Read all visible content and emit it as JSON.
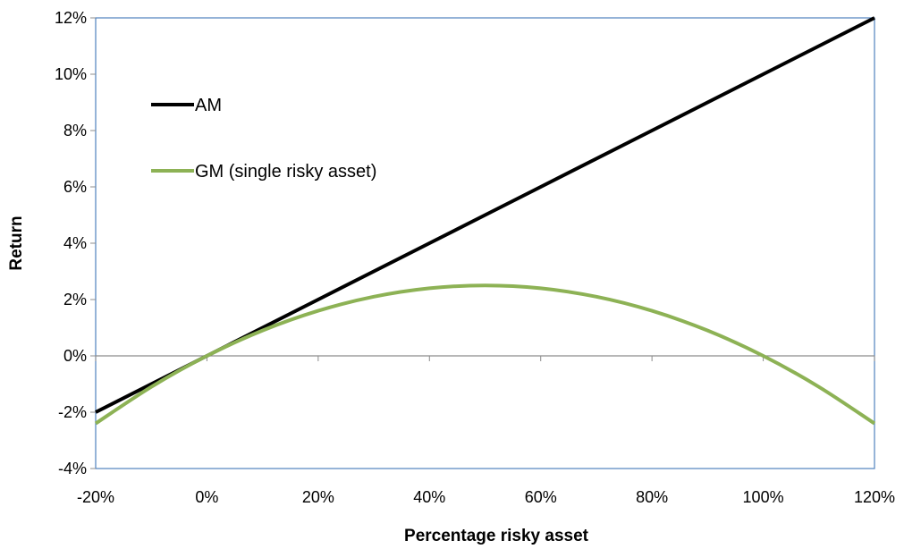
{
  "chart_data": {
    "type": "line",
    "xlabel": "Percentage risky asset",
    "ylabel": "Return",
    "xlim": [
      -0.2,
      1.2
    ],
    "ylim": [
      -0.04,
      0.12
    ],
    "x_ticks": [
      -0.2,
      0,
      0.2,
      0.4,
      0.6,
      0.8,
      1.0,
      1.2
    ],
    "x_tick_labels": [
      "-20%",
      "0%",
      "20%",
      "40%",
      "60%",
      "80%",
      "100%",
      "120%"
    ],
    "y_ticks": [
      -0.04,
      -0.02,
      0,
      0.02,
      0.04,
      0.06,
      0.08,
      0.1,
      0.12
    ],
    "y_tick_labels": [
      "-4%",
      "-2%",
      "0%",
      "2%",
      "4%",
      "6%",
      "8%",
      "10%",
      "12%"
    ],
    "grid": false,
    "legend_position": "upper-left inside plot",
    "series": [
      {
        "name": "AM",
        "color": "#000000",
        "x": [
          -0.2,
          0,
          0.2,
          0.4,
          0.5,
          0.6,
          0.8,
          1.0,
          1.2
        ],
        "y": [
          -0.02,
          0,
          0.02,
          0.04,
          0.05,
          0.06,
          0.08,
          0.1,
          0.12
        ]
      },
      {
        "name": "GM (single risky asset)",
        "color": "#8db255",
        "x": [
          -0.2,
          -0.1,
          0,
          0.1,
          0.2,
          0.3,
          0.4,
          0.5,
          0.6,
          0.7,
          0.8,
          0.9,
          1.0,
          1.1,
          1.2
        ],
        "y": [
          -0.024,
          -0.011,
          0,
          0.009,
          0.016,
          0.021,
          0.024,
          0.025,
          0.024,
          0.021,
          0.016,
          0.009,
          0,
          -0.011,
          -0.024
        ]
      }
    ]
  }
}
